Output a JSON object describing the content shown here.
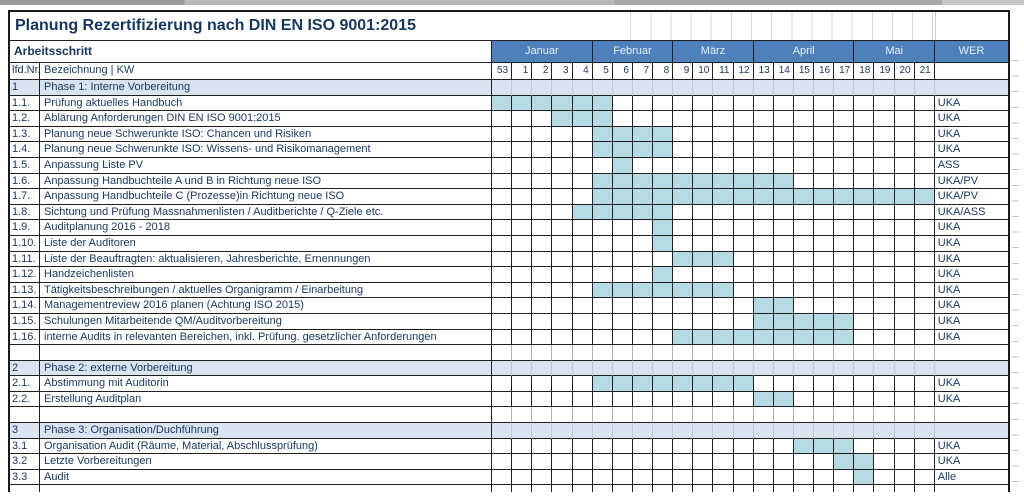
{
  "page": {
    "title": "Planung Rezertifizierung nach DIN EN ISO 9001:2015",
    "header_left": "Arbeitsschritt",
    "col_nr_label": "lfd.Nr.",
    "col_name_label": "Bezeichnung | KW",
    "wer_label": "WER"
  },
  "calendar": {
    "months": [
      {
        "label": "Januar",
        "span": 5
      },
      {
        "label": "Februar",
        "span": 4
      },
      {
        "label": "März",
        "span": 4
      },
      {
        "label": "April",
        "span": 5
      },
      {
        "label": "Mai",
        "span": 4
      }
    ],
    "weeks": [
      "53",
      "1",
      "2",
      "3",
      "4",
      "5",
      "6",
      "7",
      "8",
      "9",
      "10",
      "11",
      "12",
      "13",
      "14",
      "15",
      "16",
      "17",
      "18",
      "19",
      "20",
      "21"
    ]
  },
  "colors": {
    "header_blue": "#4e80bb",
    "phase_band": "#dae4f0",
    "bar_fill": "#b7dbe3",
    "text_navy": "#17365d"
  },
  "rows": [
    {
      "type": "phase",
      "nr": "1",
      "label": "Phase 1: Interne Vorbereitung",
      "wer": ""
    },
    {
      "type": "task",
      "nr": "1.1.",
      "label": "Prüfung aktuelles Handbuch",
      "wer": "UKA",
      "bar_start": 0,
      "bar_len": 6
    },
    {
      "type": "task",
      "nr": "1.2.",
      "label": "Ablärung Anforderungen DIN EN ISO 9001:2015",
      "wer": "UKA",
      "bar_start": 3,
      "bar_len": 3
    },
    {
      "type": "task",
      "nr": "1.3.",
      "label": "Planung neue Schwerunkte ISO: Chancen und Risiken",
      "wer": "UKA",
      "bar_start": 5,
      "bar_len": 4
    },
    {
      "type": "task",
      "nr": "1.4.",
      "label": "Planung neue Schwerunkte ISO: Wissens- und Risikomanagement",
      "wer": "UKA",
      "bar_start": 5,
      "bar_len": 4
    },
    {
      "type": "task",
      "nr": "1.5.",
      "label": "Anpassung Liste PV",
      "wer": "ASS",
      "bar_start": 6,
      "bar_len": 1
    },
    {
      "type": "task",
      "nr": "1.6.",
      "label": "Anpassung Handbuchteile A und B in Richtung neue ISO",
      "wer": "UKA/PV",
      "bar_start": 5,
      "bar_len": 10
    },
    {
      "type": "task",
      "nr": "1.7.",
      "label": "Anpassung Handbuchteile C (Prozesse)in Richtung neue ISO",
      "wer": "UKA/PV",
      "bar_start": 5,
      "bar_len": 17
    },
    {
      "type": "task",
      "nr": "1.8.",
      "label": "Sichtung und Prüfung Massnahmenlisten / Auditberichte / Q-Ziele etc.",
      "wer": "UKA/ASS",
      "bar_start": 4,
      "bar_len": 5
    },
    {
      "type": "task",
      "nr": "1.9.",
      "label": "Auditplanung 2016 - 2018",
      "wer": "UKA",
      "bar_start": 8,
      "bar_len": 1
    },
    {
      "type": "task",
      "nr": "1.10.",
      "label": "Liste der Auditoren",
      "wer": "UKA",
      "bar_start": 8,
      "bar_len": 1
    },
    {
      "type": "task",
      "nr": "1.11.",
      "label": "Liste der Beauftragten: aktualisieren, Jahresberichte, Ernennungen",
      "wer": "UKA",
      "bar_start": 9,
      "bar_len": 3
    },
    {
      "type": "task",
      "nr": "1.12.",
      "label": "Handzeichenlisten",
      "wer": "UKA",
      "bar_start": 8,
      "bar_len": 1
    },
    {
      "type": "task",
      "nr": "1.13.",
      "label": "Tätigkeitsbeschreibungen / aktuelles Organigramm / Einarbeitung",
      "wer": "UKA",
      "bar_start": 5,
      "bar_len": 7
    },
    {
      "type": "task",
      "nr": "1.14.",
      "label": "Managementreview 2016 planen (Achtung ISO 2015)",
      "wer": "UKA",
      "bar_start": 13,
      "bar_len": 2
    },
    {
      "type": "task",
      "nr": "1.15.",
      "label": "Schulungen Mitarbeitende QM/Auditvorbereitung",
      "wer": "UKA",
      "bar_start": 13,
      "bar_len": 5
    },
    {
      "type": "task",
      "nr": "1.16.",
      "label": "interne Audits in relevanten Bereichen, inkl. Prüfung. gesetzlicher Anforderungen",
      "wer": "UKA",
      "bar_start": 9,
      "bar_len": 9
    },
    {
      "type": "spacer",
      "nr": "",
      "label": "",
      "wer": ""
    },
    {
      "type": "phase",
      "nr": "2",
      "label": "Phase 2: externe Vorbereitung",
      "wer": ""
    },
    {
      "type": "task",
      "nr": "2.1.",
      "label": "Abstimmung mit Auditorin",
      "wer": "UKA",
      "bar_start": 5,
      "bar_len": 8
    },
    {
      "type": "task",
      "nr": "2.2.",
      "label": "Erstellung Auditplan",
      "wer": "UKA",
      "bar_start": 13,
      "bar_len": 2
    },
    {
      "type": "spacer",
      "nr": "",
      "label": "",
      "wer": ""
    },
    {
      "type": "phase",
      "nr": "3",
      "label": "Phase 3: Organisation/Duchführung",
      "wer": ""
    },
    {
      "type": "task",
      "nr": "3.1",
      "label": "Organisation Audit (Räume, Material, Abschlussprüfung)",
      "wer": "UKA",
      "bar_start": 15,
      "bar_len": 3
    },
    {
      "type": "task",
      "nr": "3.2",
      "label": "Letzte Vorbereitungen",
      "wer": "UKA",
      "bar_start": 17,
      "bar_len": 2
    },
    {
      "type": "task",
      "nr": "3.3",
      "label": "Audit",
      "wer": "Alle",
      "bar_start": 18,
      "bar_len": 1
    }
  ]
}
